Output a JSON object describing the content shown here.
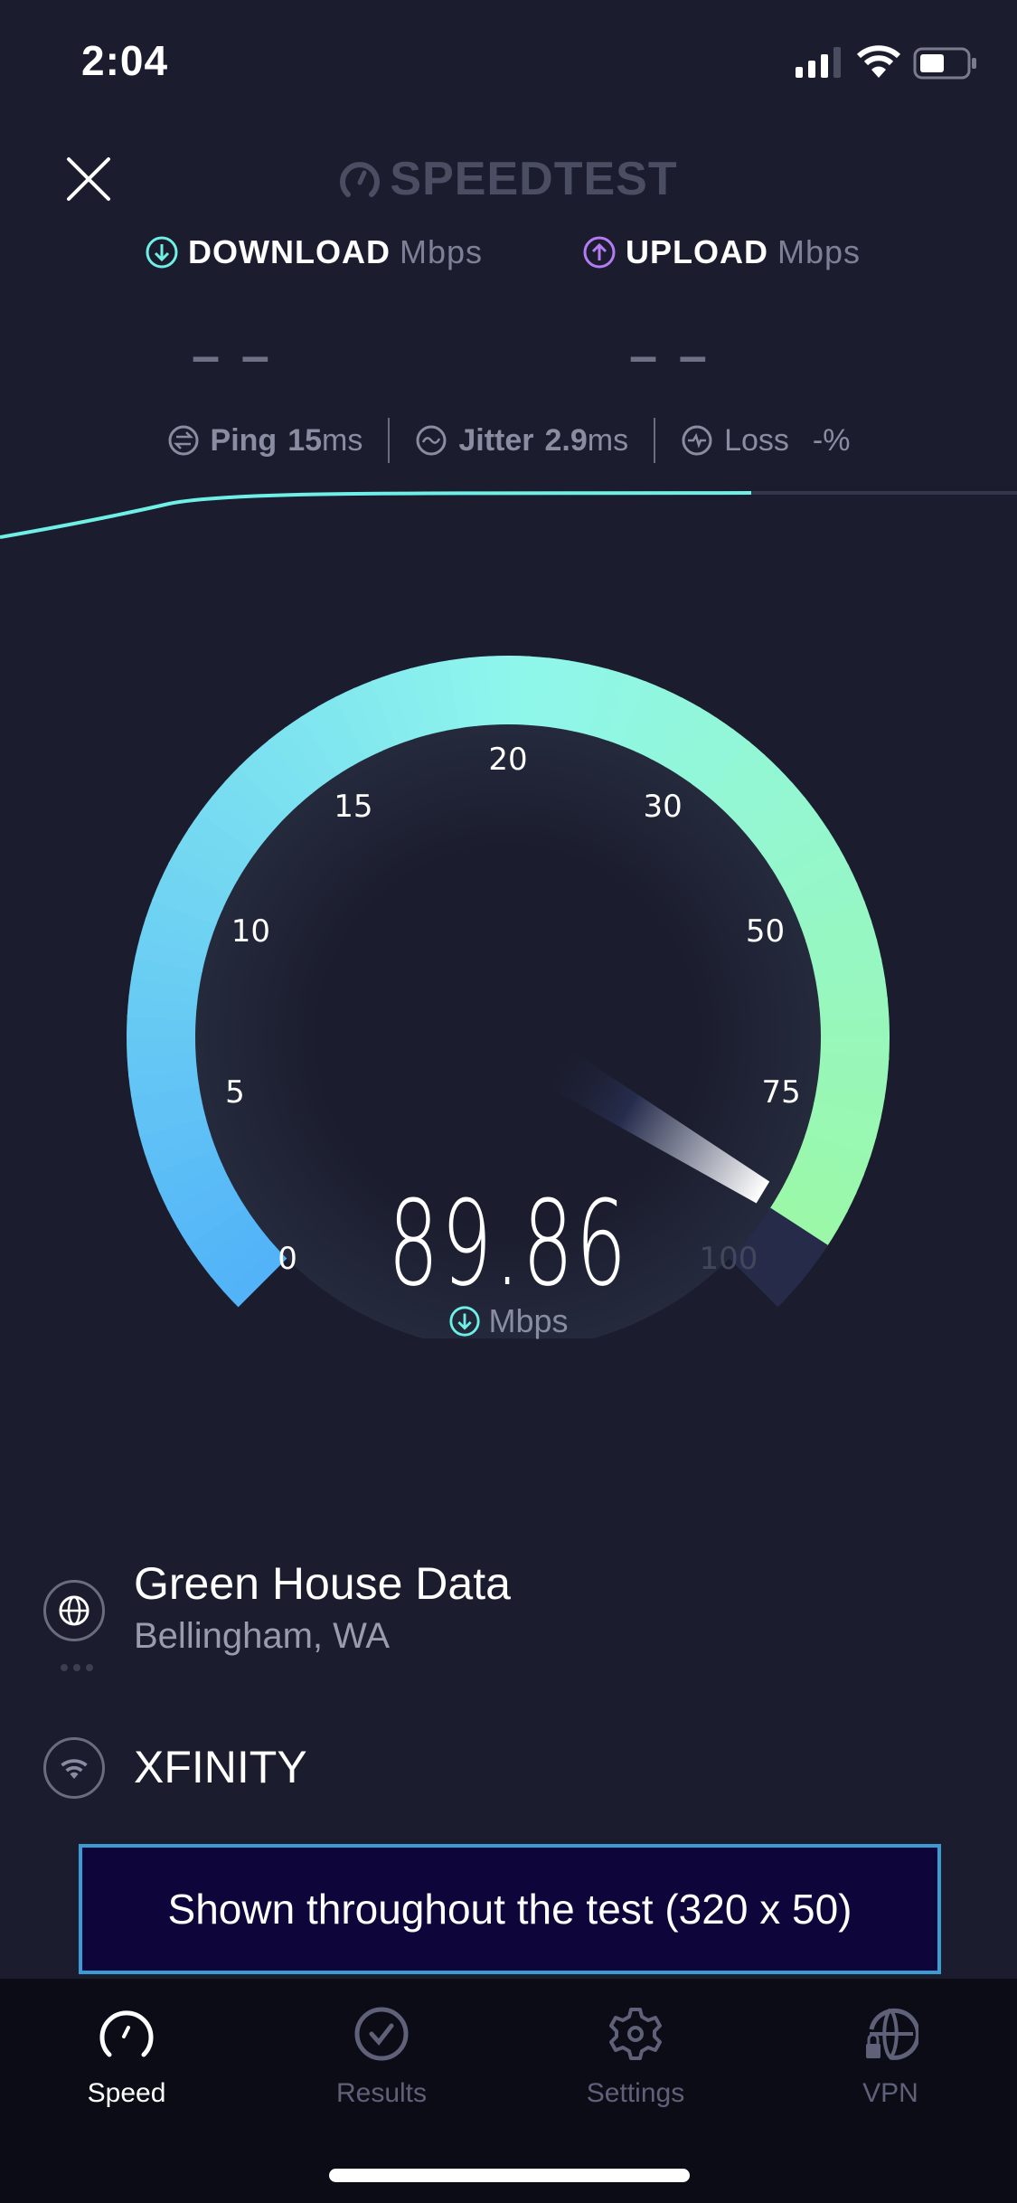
{
  "status_bar": {
    "time": "2:04",
    "signal_bars": 3,
    "battery_level": 0.45
  },
  "header": {
    "logo_text": "SPEEDTEST",
    "download_label": "DOWNLOAD",
    "upload_label": "UPLOAD",
    "unit": "Mbps",
    "download_value": "– –",
    "upload_value": "– –"
  },
  "metrics": {
    "ping_label": "Ping",
    "ping_value": "15",
    "ping_unit": "ms",
    "jitter_label": "Jitter",
    "jitter_value": "2.9",
    "jitter_unit": "ms",
    "loss_label": "Loss",
    "loss_value": "-%"
  },
  "gauge": {
    "ticks": [
      "0",
      "5",
      "10",
      "15",
      "20",
      "30",
      "50",
      "75",
      "100"
    ],
    "value": 89.86,
    "value_text": "89.86",
    "unit": "Mbps"
  },
  "server": {
    "name": "Green House Data",
    "location": "Bellingham, WA"
  },
  "provider": {
    "name": "XFINITY"
  },
  "ad": {
    "text": "Shown throughout the test (320 x 50)"
  },
  "tabs": [
    {
      "label": "Speed",
      "active": true
    },
    {
      "label": "Results",
      "active": false
    },
    {
      "label": "Settings",
      "active": false
    },
    {
      "label": "VPN",
      "active": false
    }
  ],
  "colors": {
    "background": "#1b1d2e",
    "download": "#6ff0e6",
    "upload": "#b57bf5",
    "gauge_start": "#52b3f8",
    "gauge_mid": "#8ff6ec",
    "gauge_end": "#9cf8a0",
    "ad_border": "#3d9bd3"
  }
}
